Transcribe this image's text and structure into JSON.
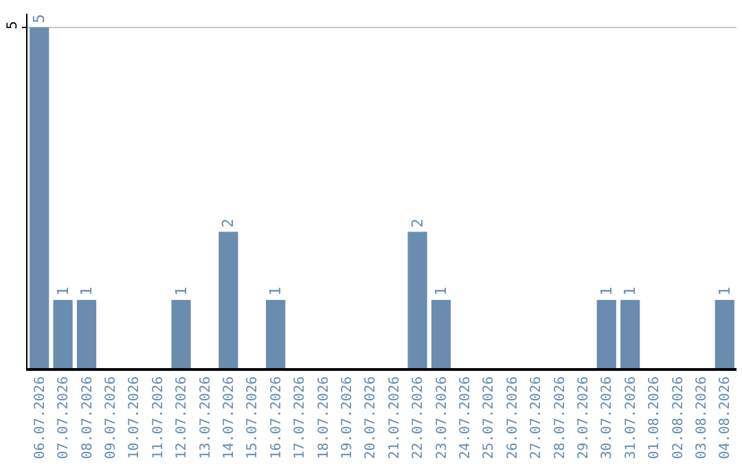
{
  "chart_data": {
    "type": "bar",
    "categories": [
      "06.07.2026",
      "07.07.2026",
      "08.07.2026",
      "09.07.2026",
      "10.07.2026",
      "11.07.2026",
      "12.07.2026",
      "13.07.2026",
      "14.07.2026",
      "15.07.2026",
      "16.07.2026",
      "17.07.2026",
      "18.07.2026",
      "19.07.2026",
      "20.07.2026",
      "21.07.2026",
      "22.07.2026",
      "23.07.2026",
      "24.07.2026",
      "25.07.2026",
      "26.07.2026",
      "27.07.2026",
      "28.07.2026",
      "29.07.2026",
      "30.07.2026",
      "31.07.2026",
      "01.08.2026",
      "02.08.2026",
      "03.08.2026",
      "04.08.2026"
    ],
    "values": [
      5,
      1,
      1,
      0,
      0,
      0,
      1,
      0,
      2,
      0,
      1,
      0,
      0,
      0,
      0,
      0,
      2,
      1,
      0,
      0,
      0,
      0,
      0,
      0,
      1,
      1,
      0,
      0,
      0,
      1
    ],
    "value_labels": [
      "5",
      "1",
      "1",
      null,
      null,
      null,
      "1",
      null,
      "2",
      null,
      "1",
      null,
      null,
      null,
      null,
      null,
      "2",
      "1",
      null,
      null,
      null,
      null,
      null,
      null,
      "1",
      "1",
      null,
      null,
      null,
      "1"
    ],
    "color": "#6a8caf",
    "ylim": [
      0,
      5.2
    ],
    "yticks": [
      5
    ],
    "grid": "y",
    "legend": false
  }
}
